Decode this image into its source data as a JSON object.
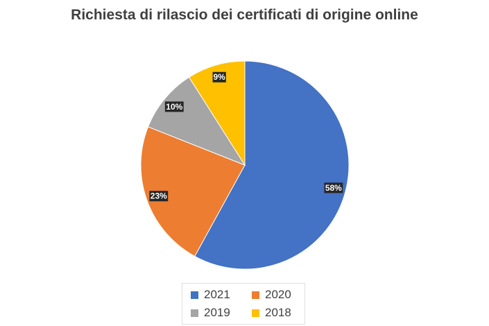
{
  "chart_data": {
    "type": "pie",
    "title": "Richiesta di rilascio dei certificati di origine online",
    "categories": [
      "2021",
      "2020",
      "2019",
      "2018"
    ],
    "values": [
      58,
      23,
      10,
      9
    ],
    "data_labels": [
      "58%",
      "23%",
      "10%",
      "9%"
    ],
    "colors": [
      "#4472C4",
      "#ED7D31",
      "#A5A5A5",
      "#FFC000"
    ],
    "legend_position": "bottom"
  }
}
